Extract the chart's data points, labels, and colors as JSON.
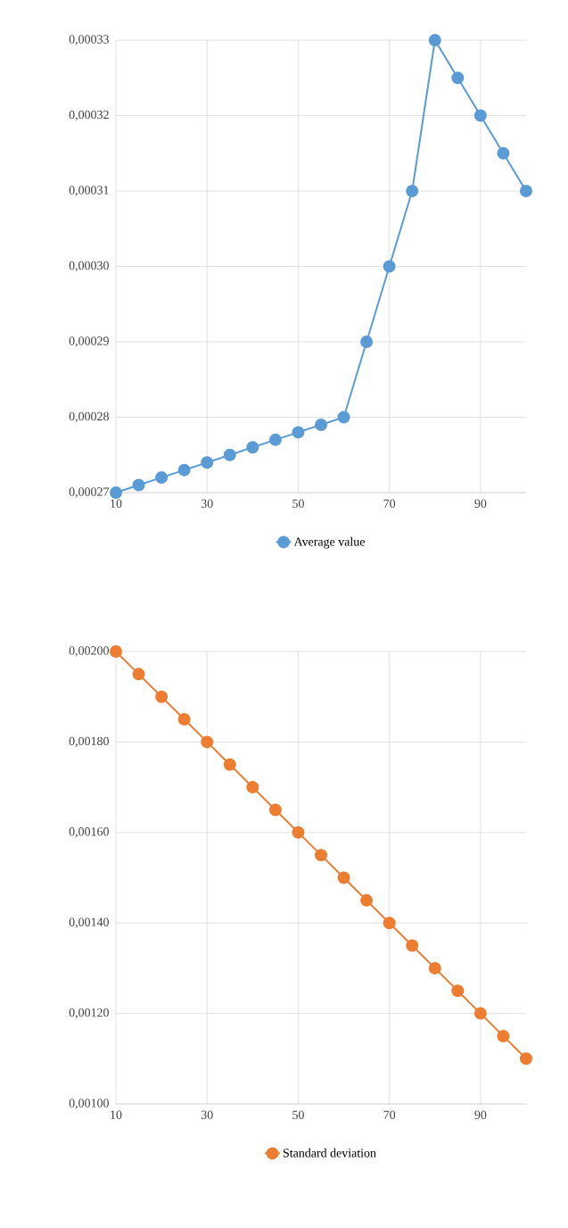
{
  "chart_data": [
    {
      "type": "line",
      "x": [
        10,
        15,
        20,
        25,
        30,
        35,
        40,
        45,
        50,
        55,
        60,
        65,
        70,
        75,
        80,
        85,
        90,
        95,
        100
      ],
      "series": [
        {
          "name": "Average value",
          "color": "#5b9bd5",
          "values": [
            0.00027,
            0.000271,
            0.000272,
            0.000273,
            0.000274,
            0.000275,
            0.000276,
            0.000277,
            0.000278,
            0.000279,
            0.00028,
            0.00029,
            0.0003,
            0.00031,
            0.00033,
            0.000325,
            0.00032,
            0.000315,
            0.00031
          ]
        }
      ],
      "xlim": [
        10,
        100
      ],
      "xticks": [
        10,
        30,
        50,
        70,
        90
      ],
      "ylim": [
        0.00027,
        0.00033
      ],
      "yticks": [
        {
          "value": 0.00027,
          "label": "0,00027"
        },
        {
          "value": 0.00028,
          "label": "0,00028"
        },
        {
          "value": 0.00029,
          "label": "0,00029"
        },
        {
          "value": 0.0003,
          "label": "0,00030"
        },
        {
          "value": 0.00031,
          "label": "0,00031"
        },
        {
          "value": 0.00032,
          "label": "0,00032"
        },
        {
          "value": 0.00033,
          "label": "0,00033"
        }
      ],
      "grid": true,
      "legend": "bottom",
      "marker": "circle",
      "line_style": "solid"
    },
    {
      "type": "line",
      "x": [
        10,
        15,
        20,
        25,
        30,
        35,
        40,
        45,
        50,
        55,
        60,
        65,
        70,
        75,
        80,
        85,
        90,
        95,
        100
      ],
      "series": [
        {
          "name": "Standard deviation",
          "color": "#ed7d31",
          "values": [
            0.002,
            0.00195,
            0.0019,
            0.00185,
            0.0018,
            0.00175,
            0.0017,
            0.00165,
            0.0016,
            0.00155,
            0.0015,
            0.00145,
            0.0014,
            0.00135,
            0.0013,
            0.00125,
            0.0012,
            0.00115,
            0.0011
          ]
        }
      ],
      "xlim": [
        10,
        100
      ],
      "xticks": [
        10,
        30,
        50,
        70,
        90
      ],
      "ylim": [
        0.001,
        0.002
      ],
      "yticks": [
        {
          "value": 0.001,
          "label": "0,00100"
        },
        {
          "value": 0.0012,
          "label": "0,00120"
        },
        {
          "value": 0.0014,
          "label": "0,00140"
        },
        {
          "value": 0.0016,
          "label": "0,00160"
        },
        {
          "value": 0.0018,
          "label": "0,00180"
        },
        {
          "value": 0.002,
          "label": "0,00200"
        }
      ],
      "grid": true,
      "legend": "bottom",
      "marker": "circle",
      "line_style": "solid"
    }
  ]
}
